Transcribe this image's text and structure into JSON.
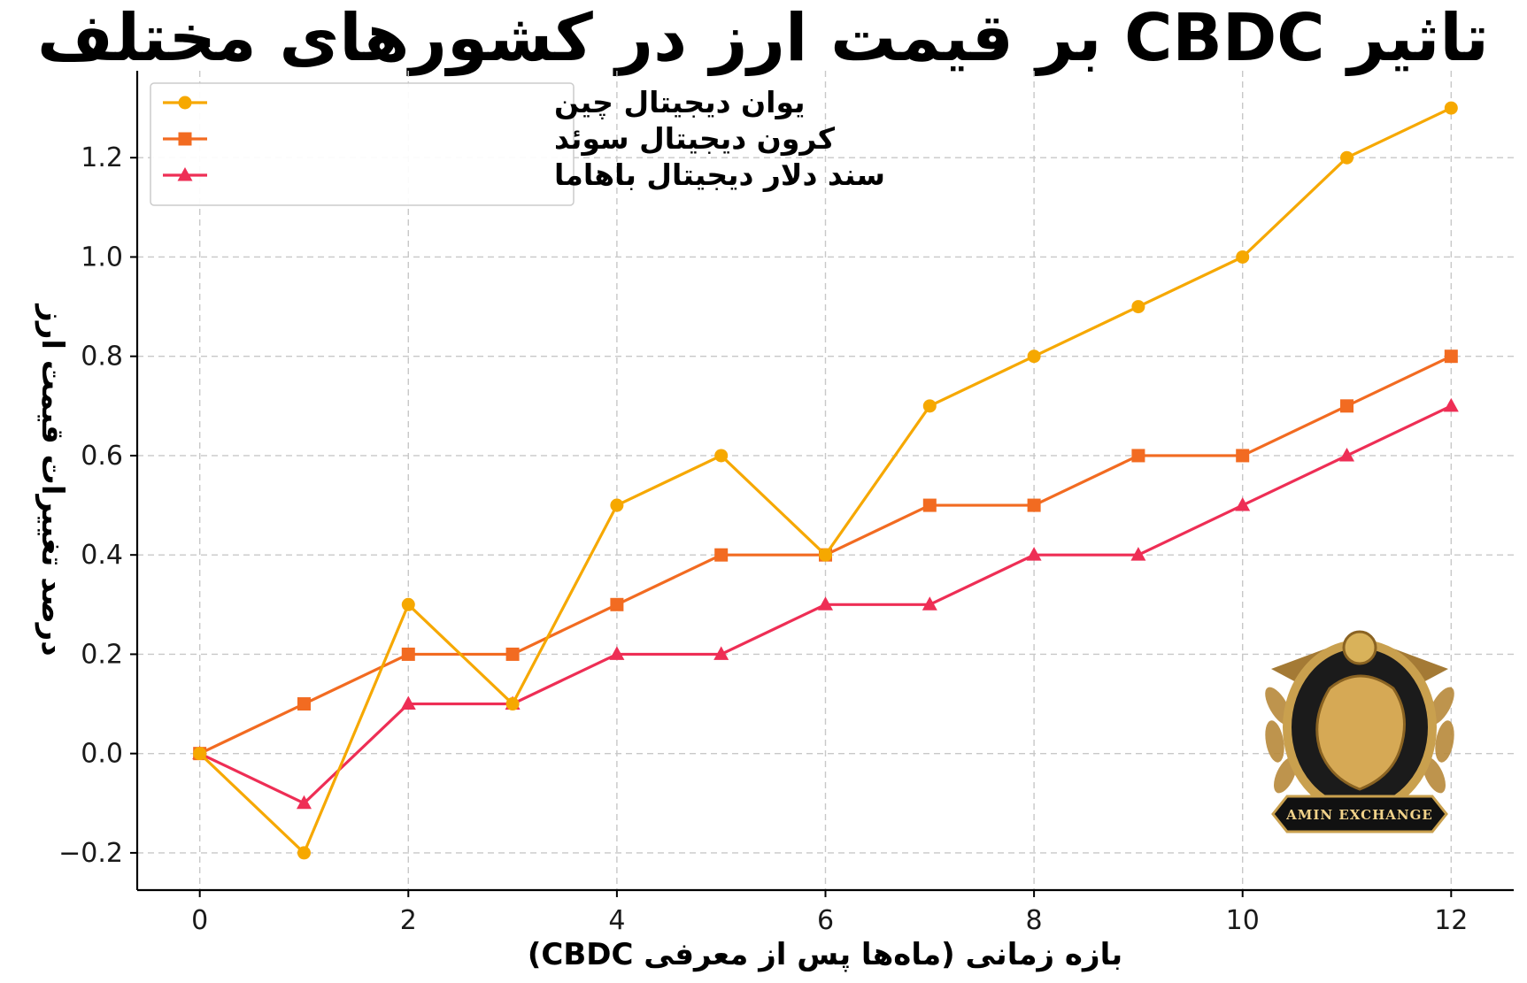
{
  "chart_data": {
    "type": "line",
    "title": "تاثیر CBDC  بر قیمت ارز در کشورهای مختلف",
    "xlabel": "بازه زمانی (ماه‌ها پس از معرفی CBDC)",
    "ylabel": "درصد تغییرات قیمت ارز",
    "x": [
      0,
      1,
      2,
      3,
      4,
      5,
      6,
      7,
      8,
      9,
      10,
      11,
      12
    ],
    "xlim": [
      -0.6,
      12.6
    ],
    "ylim": [
      -0.275,
      1.375
    ],
    "xticks": [
      0,
      2,
      4,
      6,
      8,
      10,
      12
    ],
    "xtick_labels": [
      "0",
      "2",
      "4",
      "6",
      "8",
      "10",
      "12"
    ],
    "yticks": [
      -0.2,
      0.0,
      0.2,
      0.4,
      0.6,
      0.8,
      1.0,
      1.2
    ],
    "ytick_labels": [
      "−0.2",
      "0.0",
      "0.2",
      "0.4",
      "0.6",
      "0.8",
      "1.0",
      "1.2"
    ],
    "grid": true,
    "legend_position": "top-left",
    "series": [
      {
        "name": "یوان دیجیتال چین",
        "color": "#f6a800",
        "marker": "circle",
        "values": [
          0.0,
          -0.2,
          0.3,
          0.1,
          0.5,
          0.6,
          0.4,
          0.7,
          0.8,
          0.9,
          1.0,
          1.2,
          1.3
        ]
      },
      {
        "name": "کرون دیجیتال سوئد",
        "color": "#f26b21",
        "marker": "square",
        "values": [
          0.0,
          0.1,
          0.2,
          0.2,
          0.3,
          0.4,
          0.4,
          0.5,
          0.5,
          0.6,
          0.6,
          0.7,
          0.8
        ]
      },
      {
        "name": "سند دلار دیجیتال باهاما",
        "color": "#ee2e55",
        "marker": "triangle",
        "values": [
          0.0,
          -0.1,
          0.1,
          0.1,
          0.2,
          0.2,
          0.3,
          0.3,
          0.4,
          0.4,
          0.5,
          0.6,
          0.7
        ]
      }
    ]
  },
  "watermark": {
    "text": "AMIN EXCHANGE",
    "icon": "lion-crest-icon"
  }
}
